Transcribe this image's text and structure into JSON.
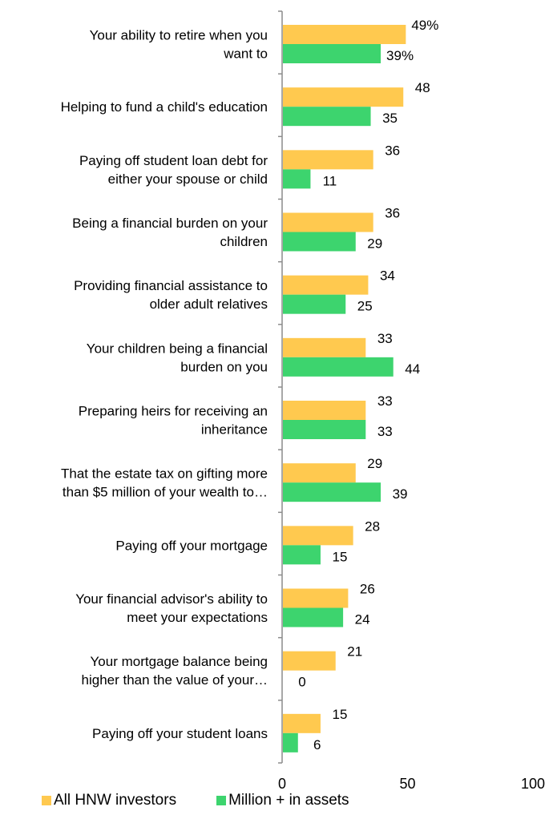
{
  "chart_data": {
    "type": "bar",
    "orientation": "horizontal",
    "categories": [
      [
        "Your ability to retire when you",
        "want to"
      ],
      [
        "Helping to fund a child's education"
      ],
      [
        "Paying off student loan debt for",
        "either your spouse or child"
      ],
      [
        "Being a financial burden on your",
        "children"
      ],
      [
        "Providing financial assistance to",
        "older adult relatives"
      ],
      [
        "Your children being a financial",
        "burden on you"
      ],
      [
        "Preparing heirs for receiving an",
        "inheritance"
      ],
      [
        "That the estate tax on gifting more",
        "than $5 million of your wealth to…"
      ],
      [
        "Paying off your mortgage"
      ],
      [
        "Your financial advisor's ability to",
        "meet your expectations"
      ],
      [
        "Your mortgage balance being",
        "higher than the value of your…"
      ],
      [
        "Paying off your student loans"
      ]
    ],
    "series": [
      {
        "name": "All HNW investors",
        "color": "#FFC94F",
        "values": [
          49,
          48,
          36,
          36,
          34,
          33,
          33,
          29,
          28,
          26,
          21,
          15
        ],
        "labels": [
          "49%",
          "48",
          "36",
          "36",
          "34",
          "33",
          "33",
          "29",
          "28",
          "26",
          "21",
          "15"
        ]
      },
      {
        "name": "Million + in assets",
        "color": "#3DD46E",
        "values": [
          39,
          35,
          11,
          29,
          25,
          44,
          33,
          39,
          15,
          24,
          0,
          6
        ],
        "labels": [
          "39%",
          "35",
          "11",
          "29",
          "25",
          "44",
          "33",
          "39",
          "15",
          "24",
          "0",
          "6"
        ]
      }
    ],
    "xlim": [
      0,
      100
    ],
    "xticks": [
      0,
      50,
      100
    ],
    "xtick_labels": [
      "0",
      "50",
      "100"
    ],
    "grid": false,
    "legend_position": "bottom-left"
  }
}
